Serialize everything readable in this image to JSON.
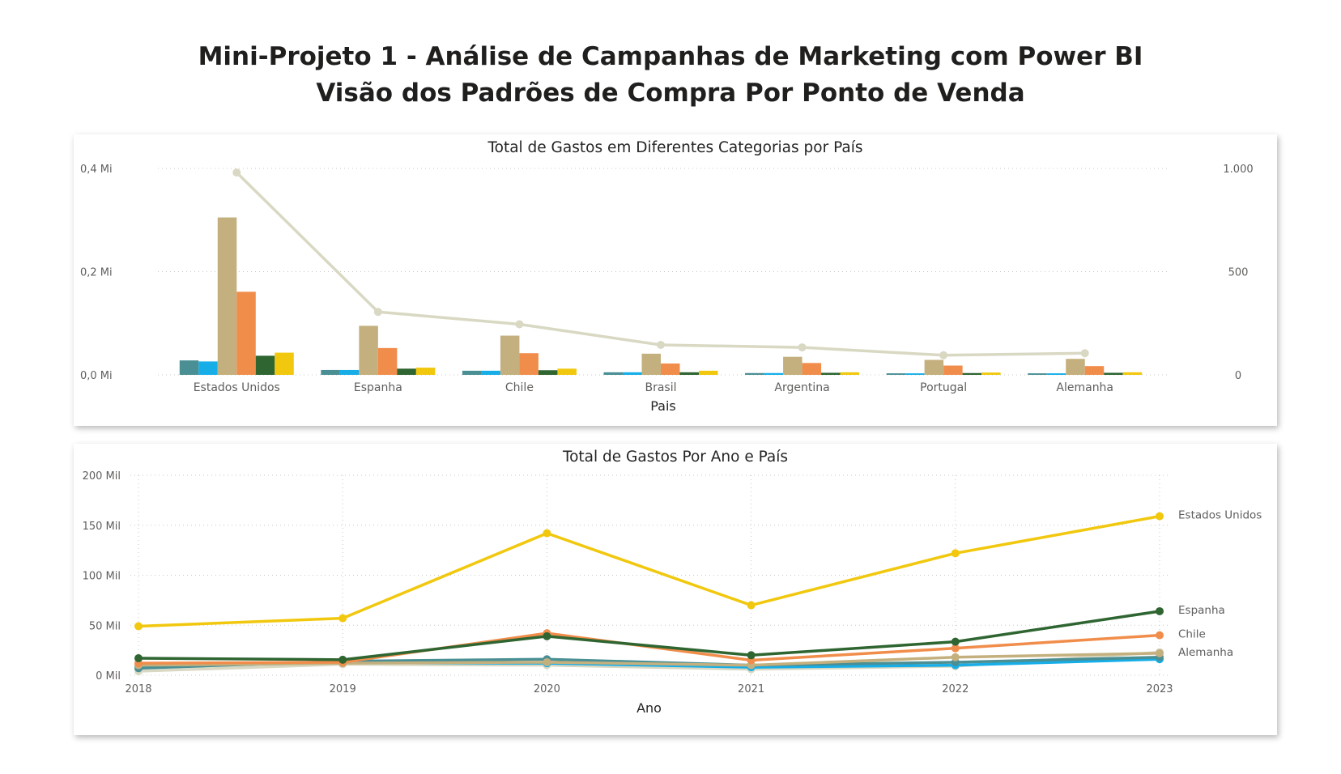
{
  "report": {
    "title_line1": "Mini-Projeto 1 - Análise de Campanhas de Marketing com Power BI",
    "title_line2": "Visão dos Padrões de Compra Por Ponto de Venda"
  },
  "chart_data": [
    {
      "type": "bar",
      "title": "Total de Gastos em Diferentes Categorias por País",
      "xlabel": "Pais",
      "ylabel": "",
      "ylim": [
        0,
        400000
      ],
      "y_ticks": [
        0,
        200000,
        400000
      ],
      "y_tick_labels": [
        "0,0 Mi",
        "0,2 Mi",
        "0,4 Mi"
      ],
      "y2lim": [
        0,
        1000
      ],
      "y2_ticks": [
        0,
        500,
        1000
      ],
      "y2_tick_labels": [
        "0",
        "500",
        "1.000"
      ],
      "grid": true,
      "legend": "none",
      "categories": [
        "Estados Unidos",
        "Espanha",
        "Chile",
        "Brasil",
        "Argentina",
        "Portugal",
        "Alemanha"
      ],
      "series": [
        {
          "color": "#4a8f94",
          "values": [
            28000,
            9500,
            8000,
            5000,
            3500,
            3000,
            3000
          ]
        },
        {
          "color": "#17aee8",
          "values": [
            26000,
            9500,
            8000,
            5000,
            3500,
            3000,
            3000
          ]
        },
        {
          "color": "#c4b07e",
          "values": [
            305000,
            95000,
            76000,
            41000,
            35000,
            29000,
            31000
          ]
        },
        {
          "color": "#f18d4b",
          "values": [
            161000,
            52000,
            42000,
            22000,
            23000,
            18000,
            17000
          ]
        },
        {
          "color": "#2e6531",
          "values": [
            37000,
            12000,
            9000,
            5000,
            4000,
            3500,
            4000
          ]
        },
        {
          "color": "#f1c80e",
          "values": [
            43000,
            14000,
            12000,
            8000,
            5000,
            4500,
            5000
          ]
        }
      ],
      "line_series": {
        "axis": "secondary",
        "color": "#d9d8c3",
        "values": [
          980,
          305,
          245,
          145,
          133,
          95,
          105
        ]
      }
    },
    {
      "type": "line",
      "title": "Total de Gastos Por Ano e País",
      "xlabel": "Ano",
      "ylabel": "",
      "x": [
        2018,
        2019,
        2020,
        2021,
        2022,
        2023
      ],
      "ylim": [
        0,
        200000
      ],
      "y_ticks": [
        0,
        50000,
        100000,
        150000,
        200000
      ],
      "y_tick_labels": [
        "0 Mil",
        "50 Mil",
        "100 Mil",
        "150 Mil",
        "200 Mil"
      ],
      "grid": true,
      "legend": "end-of-line labels",
      "series": [
        {
          "name": "Estados Unidos",
          "color": "#f1c80e",
          "values": [
            49000,
            57000,
            142000,
            70000,
            122000,
            159000
          ]
        },
        {
          "name": "Espanha",
          "color": "#2e6531",
          "values": [
            17000,
            15500,
            39000,
            20000,
            33500,
            64000
          ]
        },
        {
          "name": "Chile",
          "color": "#f18d4b",
          "values": [
            12000,
            13000,
            42000,
            15000,
            27000,
            40000
          ]
        },
        {
          "name": "Alemanha",
          "color": "#c4b07e",
          "values": [
            10000,
            12000,
            13000,
            10000,
            18000,
            22000
          ]
        },
        {
          "name": "",
          "color": "#4a8f94",
          "values": [
            7000,
            14000,
            16000,
            10000,
            13000,
            18000
          ]
        },
        {
          "name": "",
          "color": "#17aee8",
          "values": [
            9000,
            12500,
            12000,
            8000,
            10000,
            16000
          ]
        },
        {
          "name": "",
          "color": "#d9d8c3",
          "values": [
            4000,
            11000,
            10000,
            6000,
            9000,
            23000
          ]
        }
      ]
    }
  ]
}
